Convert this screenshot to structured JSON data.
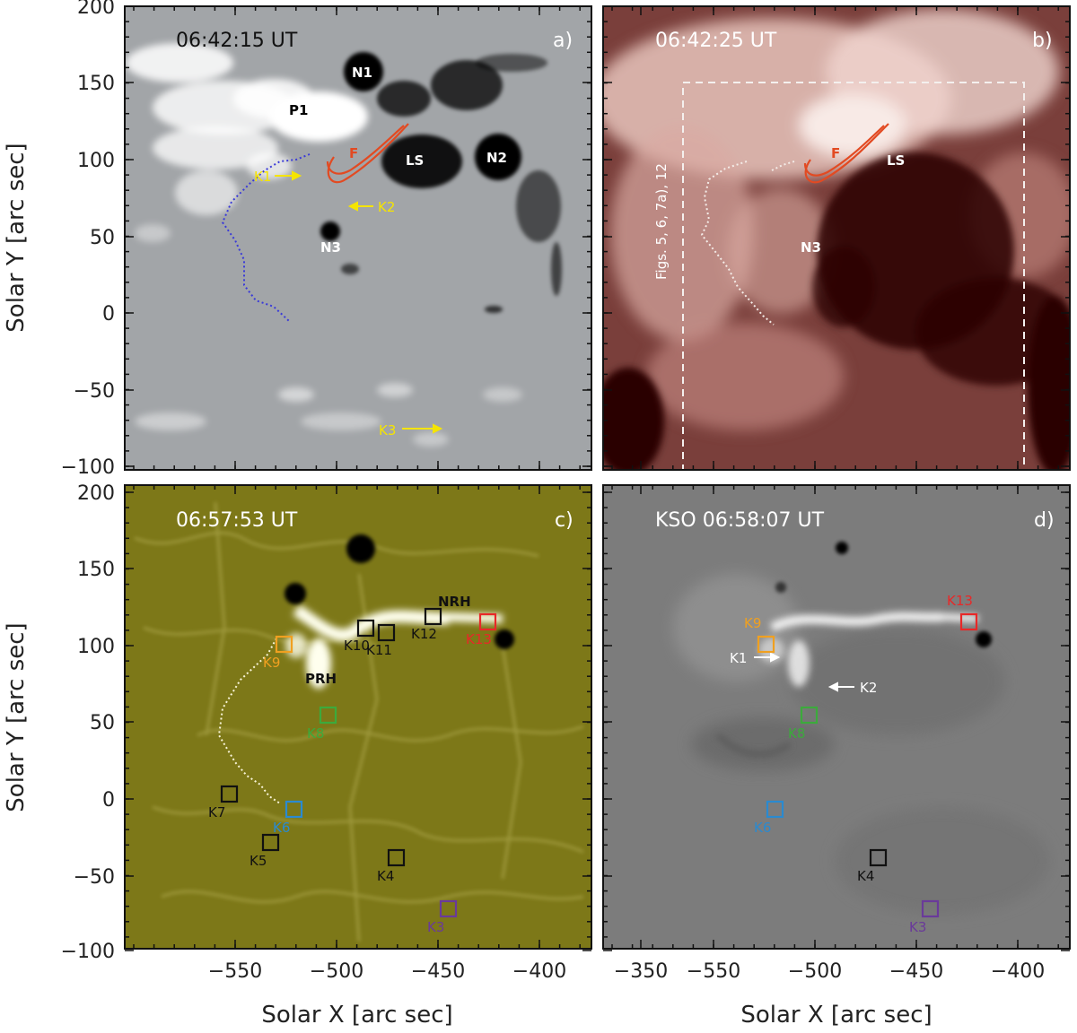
{
  "figure": {
    "x_axis_title": "Solar X [arc sec]",
    "y_axis_title": "Solar Y [arc sec]",
    "x_ticks": [
      "−550",
      "−500",
      "−450",
      "−400",
      "−350"
    ],
    "y_ticks": [
      "200",
      "150",
      "100",
      "50",
      "0",
      "−50",
      "−100"
    ],
    "colors": {
      "magnetogram_bg": "#a2a5a8",
      "euv_bg": "#7a3f3b",
      "chromosphere_bg": "#7d7818",
      "halpha_bg": "#7c7c7c",
      "k9": "#f0a020",
      "k13": "#e82828",
      "k8": "#3caa3c",
      "k6": "#2a8ad0",
      "k3": "#6a3a9a",
      "filament": "#e24a22",
      "arrow_yellow": "#f5e400"
    }
  },
  "panels": {
    "a": {
      "timestamp": "06:42:15 UT",
      "letter": "a)",
      "labels": {
        "n1": "N1",
        "n2": "N2",
        "n3": "N3",
        "p1": "P1",
        "f": "F",
        "ls": "LS"
      },
      "arrows": {
        "k1": "K1",
        "k2": "K2",
        "k3": "K3"
      }
    },
    "b": {
      "timestamp": "06:42:25 UT",
      "letter": "b)",
      "labels": {
        "f": "F",
        "ls": "LS",
        "n3": "N3"
      },
      "box_caption": "Figs. 5, 6, 7a), 12"
    },
    "c": {
      "timestamp": "06:57:53 UT",
      "letter": "c)",
      "labels": {
        "nrh": "NRH",
        "prh": "PRH"
      },
      "kernels": {
        "k3": "K3",
        "k4": "K4",
        "k5": "K5",
        "k6": "K6",
        "k7": "K7",
        "k8": "K8",
        "k9": "K9",
        "k10": "K10",
        "k11": "K11",
        "k12": "K12",
        "k13": "K13"
      }
    },
    "d": {
      "timestamp": "KSO 06:58:07 UT",
      "letter": "d)",
      "arrows": {
        "k1": "K1",
        "k2": "K2"
      },
      "kernels": {
        "k3": "K3",
        "k4": "K4",
        "k6": "K6",
        "k8": "K8",
        "k9": "K9",
        "k13": "K13"
      }
    }
  }
}
